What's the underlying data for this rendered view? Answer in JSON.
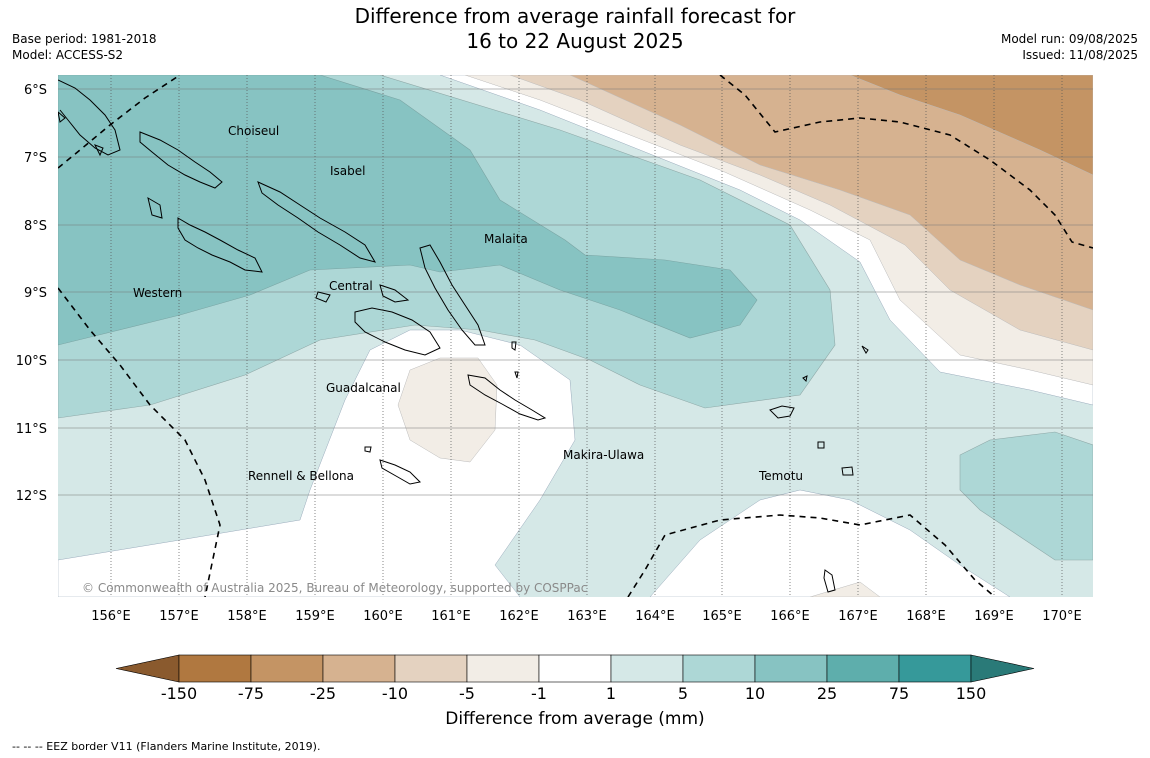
{
  "header": {
    "title_line1": "Difference from average rainfall forecast for",
    "title_line2": "16 to 22 August 2025",
    "base_period": "Base period: 1981-2018",
    "model": "Model: ACCESS-S2",
    "model_run": "Model run: 09/08/2025",
    "issued": "Issued: 11/08/2025"
  },
  "map": {
    "lat_labels": [
      "6°S",
      "7°S",
      "8°S",
      "9°S",
      "10°S",
      "11°S",
      "12°S"
    ],
    "lon_labels": [
      "156°E",
      "157°E",
      "158°E",
      "159°E",
      "160°E",
      "161°E",
      "162°E",
      "163°E",
      "164°E",
      "165°E",
      "166°E",
      "167°E",
      "168°E",
      "169°E",
      "170°E"
    ],
    "provinces": [
      {
        "name": "Choiseul"
      },
      {
        "name": "Isabel"
      },
      {
        "name": "Malaita"
      },
      {
        "name": "Western"
      },
      {
        "name": "Central"
      },
      {
        "name": "Guadalcanal"
      },
      {
        "name": "Makira-Ulawa"
      },
      {
        "name": "Rennell & Bellona"
      },
      {
        "name": "Temotu"
      }
    ],
    "copyright": "© Commonwealth of Australia 2025, Bureau of Meteorology, supported by COSPPac"
  },
  "colorbar": {
    "title": "Difference from average (mm)",
    "ticks": [
      "-150",
      "-75",
      "-25",
      "-10",
      "-5",
      "-1",
      "1",
      "5",
      "10",
      "25",
      "75",
      "150"
    ],
    "colors": [
      "#8a5a2e",
      "#b07840",
      "#c49464",
      "#d6b290",
      "#e4d2c0",
      "#f2ede6",
      "#ffffff",
      "#d5e8e7",
      "#add7d6",
      "#87c3c2",
      "#5eaeac",
      "#36999a",
      "#2a7a78"
    ]
  },
  "footnote": "-- -- -- EEZ border V11 (Flanders Marine Institute, 2019)."
}
